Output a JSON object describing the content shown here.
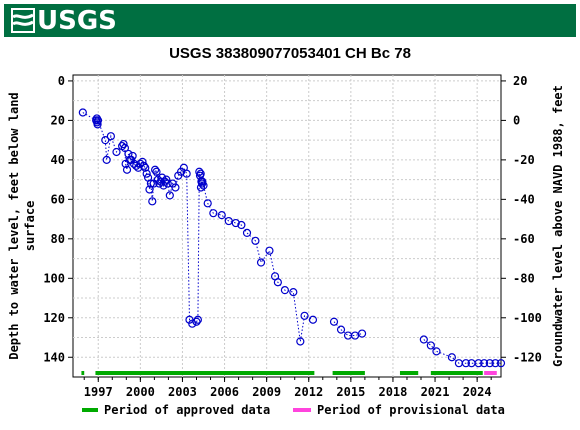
{
  "header": {
    "logo_text": "USGS",
    "logo_icon": "usgs-wave-icon",
    "banner_color": "#006f41"
  },
  "chart_data": {
    "type": "scatter",
    "title": "USGS 383809077053401 CH Bc  78",
    "ylabel_left": [
      "Depth to water level, feet below land",
      "surface"
    ],
    "ylabel_right": "Groundwater level above NAVD 1988, feet",
    "xlabel": "",
    "x_ticks": [
      "1997",
      "2000",
      "2003",
      "2006",
      "2009",
      "2012",
      "2015",
      "2018",
      "2021",
      "2024"
    ],
    "xlim": [
      1995.2,
      2025.7
    ],
    "ylim_left": [
      150,
      -3
    ],
    "yticks_left": [
      0,
      20,
      40,
      60,
      80,
      100,
      120,
      140
    ],
    "ylim_right": [
      -130,
      23
    ],
    "yticks_right": [
      20,
      0,
      -20,
      -40,
      -60,
      -80,
      -100,
      -120
    ],
    "grid": true,
    "marker_color": "#0000cc",
    "line_style": "dotted",
    "series": [
      {
        "x": [
          1995.9,
          1996.85,
          1996.9,
          1996.92,
          1996.95,
          1996.98,
          1997.5,
          1997.6,
          1997.9,
          1998.3,
          1998.7,
          1998.8,
          1998.9,
          1998.95,
          1999.05,
          1999.15,
          1999.25,
          1999.35,
          1999.45,
          1999.55,
          1999.7,
          1999.85,
          2000.0,
          2000.15,
          2000.25,
          2000.35,
          2000.45,
          2000.55,
          2000.65,
          2000.75,
          2000.85,
          2000.95,
          2001.05,
          2001.15,
          2001.25,
          2001.35,
          2001.45,
          2001.55,
          2001.65,
          2001.75,
          2001.85,
          2001.95,
          2002.1,
          2002.3,
          2002.5,
          2002.7,
          2002.9,
          2003.1,
          2003.3,
          2003.5,
          2003.7,
          2004.0,
          2004.1,
          2004.2,
          2004.25,
          2004.3,
          2004.32,
          2004.35,
          2004.37,
          2004.4,
          2004.42,
          2004.5,
          2004.8,
          2005.2,
          2005.8,
          2006.3,
          2006.8,
          2007.2,
          2007.6,
          2008.2,
          2008.6,
          2009.2,
          2009.6,
          2009.8,
          2010.3,
          2010.9,
          2011.4,
          2011.7,
          2012.3,
          2013.8,
          2014.3,
          2014.8,
          2015.3,
          2015.8,
          2020.2,
          2020.7,
          2021.1,
          2022.2,
          2022.7,
          2023.2,
          2023.6,
          2024.1,
          2024.5,
          2024.9,
          2025.3,
          2025.7
        ],
        "y": [
          16,
          20,
          19,
          21,
          22,
          20,
          30,
          40,
          28,
          36,
          33,
          32,
          34,
          42,
          45,
          37,
          40,
          40,
          38,
          42,
          43,
          44,
          42,
          41,
          43,
          44,
          47,
          49,
          55,
          52,
          61,
          52,
          45,
          46,
          50,
          52,
          51,
          49,
          53,
          51,
          50,
          52,
          58,
          52,
          54,
          48,
          46,
          44,
          47,
          121,
          123,
          122,
          121,
          46,
          48,
          47,
          54,
          51,
          51,
          52,
          51,
          53,
          62,
          67,
          68,
          71,
          72,
          73,
          77,
          81,
          92,
          86,
          99,
          102,
          106,
          107,
          132,
          119,
          121,
          122,
          126,
          129,
          129,
          128,
          131,
          134,
          137,
          140,
          143,
          143,
          143,
          143,
          143,
          143,
          143,
          143
        ]
      }
    ],
    "legend": [
      {
        "label": "Period of approved data",
        "color": "#00aa00"
      },
      {
        "label": "Period of provisional data",
        "color": "#ff44dd"
      }
    ],
    "legend_position": "bottom",
    "approved_periods": [
      [
        1995.8,
        1996.0
      ],
      [
        1996.8,
        2012.4
      ],
      [
        2013.7,
        2016.0
      ],
      [
        2018.5,
        2019.8
      ],
      [
        2020.7,
        2024.4
      ]
    ],
    "provisional_periods": [
      [
        2024.5,
        2025.4
      ]
    ]
  }
}
